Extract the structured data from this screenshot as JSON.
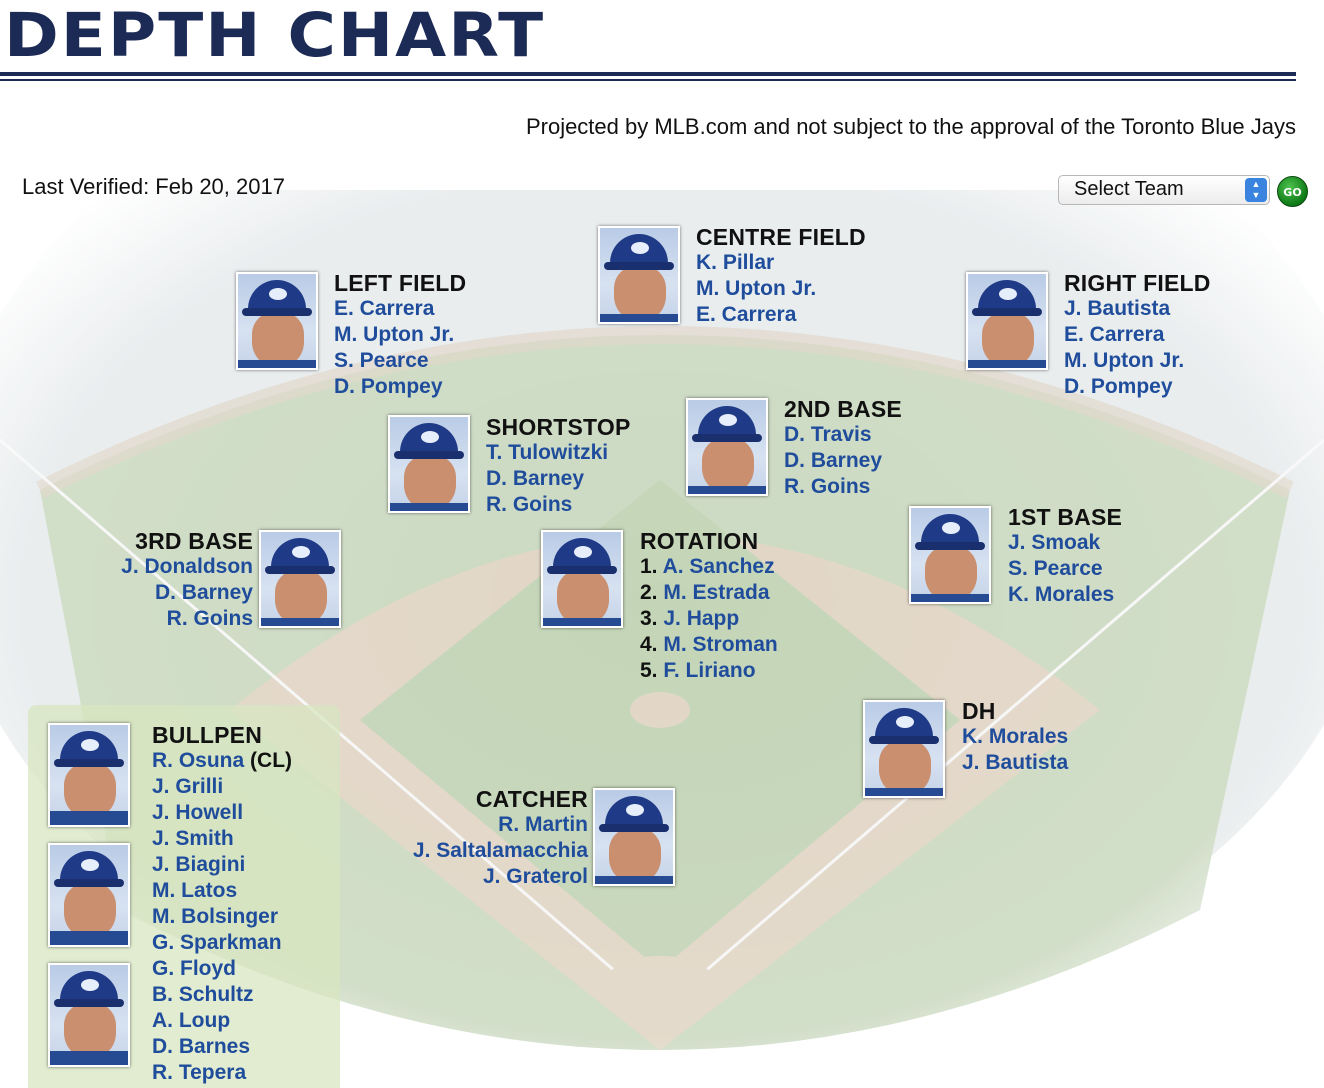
{
  "header": {
    "title": "DEPTH  CHART",
    "disclaimer": "Projected by MLB.com and not subject to the approval of the Toronto Blue Jays",
    "last_verified": "Last Verified: Feb 20, 2017"
  },
  "team_select": {
    "selected": "Select Team",
    "go_label": "GO"
  },
  "positions": {
    "left_field": {
      "title": "LEFT FIELD",
      "players": [
        "E. Carrera",
        "M. Upton Jr.",
        "S. Pearce",
        "D. Pompey"
      ]
    },
    "centre_field": {
      "title": "CENTRE FIELD",
      "players": [
        "K. Pillar",
        "M. Upton Jr.",
        "E. Carrera"
      ]
    },
    "right_field": {
      "title": "RIGHT FIELD",
      "players": [
        "J. Bautista",
        "E. Carrera",
        "M. Upton Jr.",
        "D. Pompey"
      ]
    },
    "shortstop": {
      "title": "SHORTSTOP",
      "players": [
        "T. Tulowitzki",
        "D. Barney",
        "R. Goins"
      ]
    },
    "second_base": {
      "title": "2ND BASE",
      "players": [
        "D. Travis",
        "D. Barney",
        "R. Goins"
      ]
    },
    "third_base": {
      "title": "3RD BASE",
      "players": [
        "J. Donaldson",
        "D. Barney",
        "R. Goins"
      ]
    },
    "rotation": {
      "title": "ROTATION",
      "numbers": [
        "1.",
        "2.",
        "3.",
        "4.",
        "5."
      ],
      "players": [
        "A. Sanchez",
        "M. Estrada",
        "J. Happ",
        "M. Stroman",
        "F. Liriano"
      ]
    },
    "first_base": {
      "title": "1ST BASE",
      "players": [
        "J. Smoak",
        "S. Pearce",
        "K. Morales"
      ]
    },
    "dh": {
      "title": "DH",
      "players": [
        "K. Morales",
        "J. Bautista"
      ]
    },
    "catcher": {
      "title": "CATCHER",
      "players": [
        "R. Martin",
        "J. Saltalamacchia",
        "J. Graterol"
      ]
    },
    "bullpen": {
      "title": "BULLPEN",
      "closer_tag": "(CL)",
      "players": [
        "R. Osuna",
        "J. Grilli",
        "J. Howell",
        "J. Smith",
        "J. Biagini",
        "M. Latos",
        "M. Bolsinger",
        "G. Sparkman",
        "G. Floyd",
        "B. Schultz",
        "A. Loup",
        "D. Barnes",
        "R. Tepera"
      ]
    }
  },
  "colors": {
    "title_navy": "#1c2a56",
    "player_link": "#1f4d9c",
    "grass": "#9fb98a",
    "dirt": "#c9b59a",
    "bullpen_bg": "#d7e6c0"
  }
}
